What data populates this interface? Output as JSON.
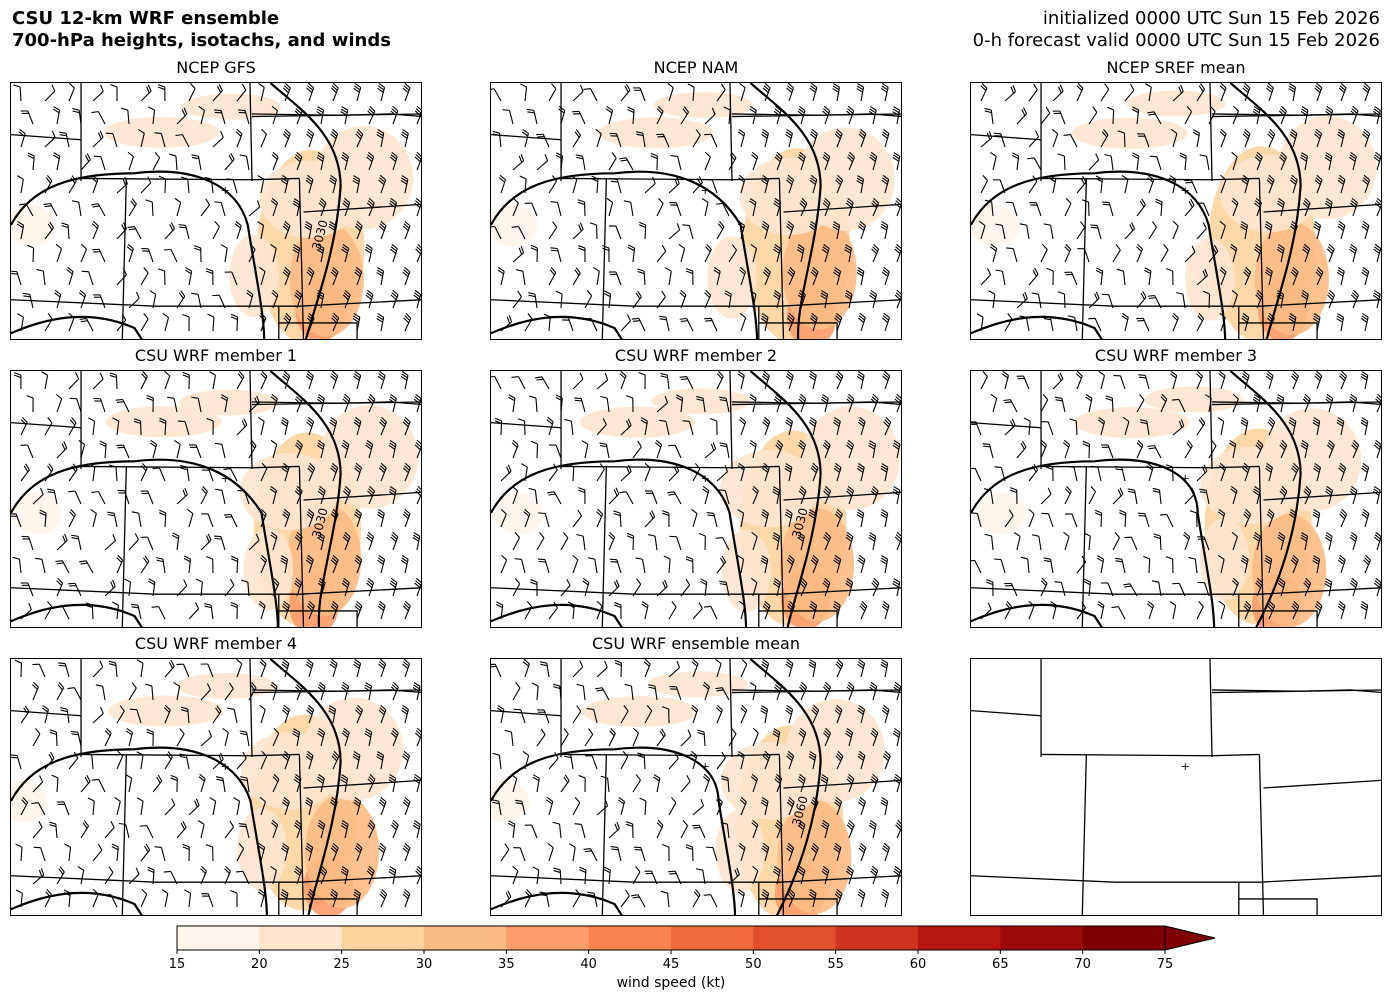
{
  "header": {
    "title_line1": "CSU 12-km WRF ensemble",
    "title_line2": "700-hPa heights, isotachs, and winds",
    "init_line": "initialized 0000 UTC Sun 15 Feb 2026",
    "valid_line": "0-h forecast valid 0000 UTC Sun 15 Feb 2026"
  },
  "chart_data": {
    "type": "heatmap",
    "description_units": "wind speed (kt)",
    "panels": [
      {
        "title": "NCEP GFS",
        "contour_labels": [
          "3030"
        ]
      },
      {
        "title": "NCEP NAM",
        "contour_labels": []
      },
      {
        "title": "NCEP SREF mean",
        "contour_labels": []
      },
      {
        "title": "CSU WRF member 1",
        "contour_labels": [
          "3030"
        ]
      },
      {
        "title": "CSU WRF member 2",
        "contour_labels": [
          "3030"
        ]
      },
      {
        "title": "CSU WRF member 3",
        "contour_labels": []
      },
      {
        "title": "CSU WRF member 4",
        "contour_labels": []
      },
      {
        "title": "CSU WRF ensemble mean",
        "contour_labels": [
          "3060"
        ]
      },
      {
        "title": "",
        "contour_labels": []
      }
    ],
    "colorbar": {
      "label": "wind speed (kt)",
      "ticks": [
        15,
        20,
        25,
        30,
        35,
        40,
        45,
        50,
        55,
        60,
        65,
        70,
        75
      ],
      "colors": [
        "#fff5eb",
        "#fee6ce",
        "#fdd49e",
        "#fdbb84",
        "#fc9c6a",
        "#f9844f",
        "#f06c3c",
        "#e0502c",
        "#cc341f",
        "#b71712",
        "#9a0a0a",
        "#7f0000"
      ],
      "extend": "max"
    }
  }
}
